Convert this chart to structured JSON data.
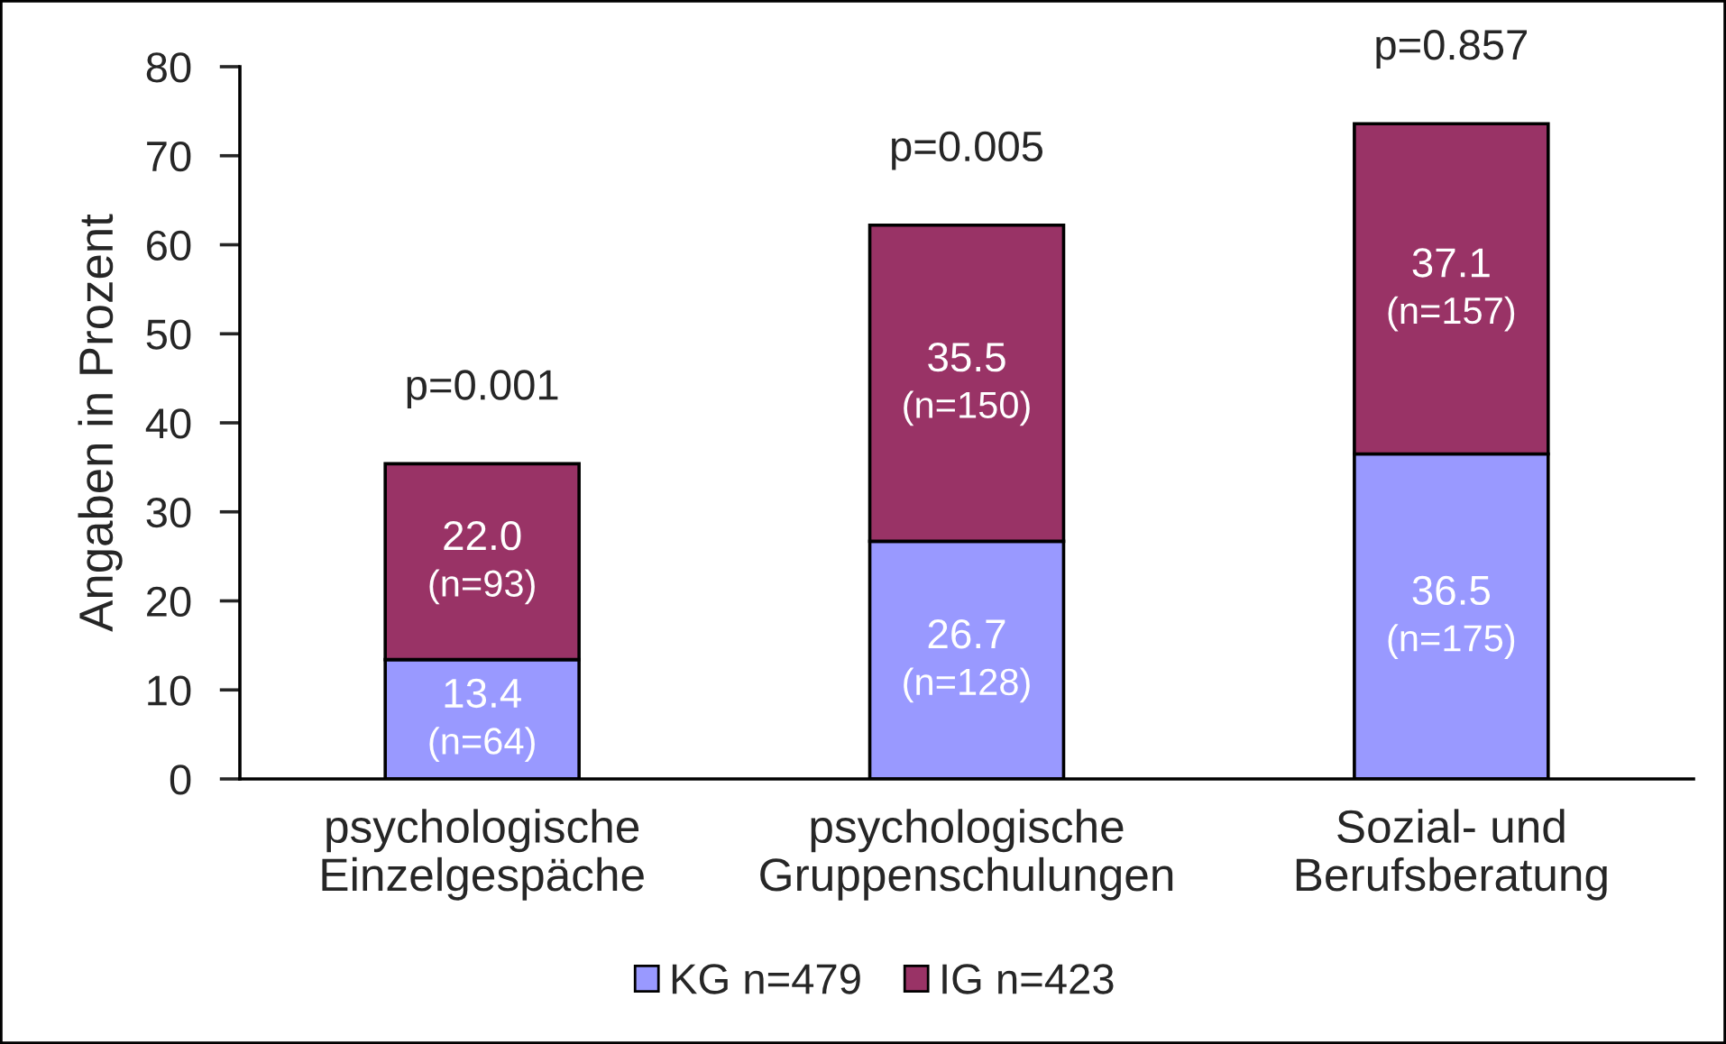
{
  "chart_data": {
    "type": "bar",
    "stacked": true,
    "categories": [
      "psychologische\nEinzelgespäche",
      "psychologische\nGruppenschulungen",
      "Sozial- und\nBerufsberatung"
    ],
    "series": [
      {
        "name": "KG n=479",
        "color": "#9999ff",
        "values": [
          13.4,
          26.7,
          36.5
        ],
        "value_labels": [
          "13.4\n(n=64)",
          "26.7\n(n=128)",
          "36.5\n(n=175)"
        ]
      },
      {
        "name": "IG n=423",
        "color": "#993366",
        "values": [
          22.0,
          35.5,
          37.1
        ],
        "value_labels": [
          "22.0\n(n=93)",
          "35.5\n(n=150)",
          "37.1\n(n=157)"
        ]
      }
    ],
    "ylabel": "Angaben in Prozent",
    "ylim": [
      0,
      80
    ],
    "yticks": [
      0,
      10,
      20,
      30,
      40,
      50,
      60,
      70,
      80
    ],
    "annotations": [
      "p=0.001",
      "p=0.005",
      "p=0.857"
    ],
    "legend": "bottom",
    "grid": false
  }
}
